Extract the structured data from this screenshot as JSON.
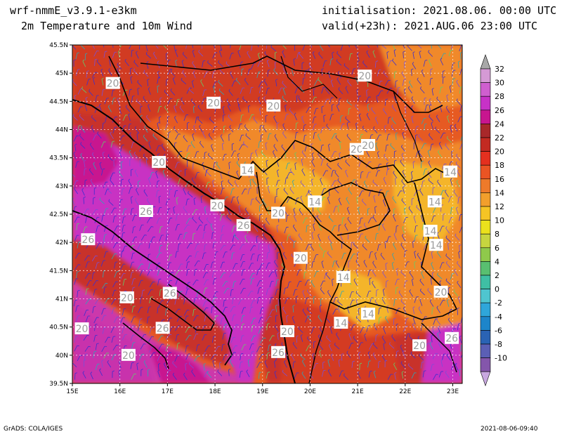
{
  "header": {
    "model": "wrf-nmmE_v3.9.1-e3km",
    "field": "2m Temperature and 10m Wind",
    "init": "initialisation: 2021.08.06. 00:00 UTC",
    "valid": "valid(+23h): 2021.AUG.06 23:00 UTC"
  },
  "footer": {
    "software": "GrADS: COLA/IGES",
    "timestamp": "2021-08-06-09:40"
  },
  "axes": {
    "lon_labels": [
      "15E",
      "16E",
      "17E",
      "18E",
      "19E",
      "20E",
      "21E",
      "22E",
      "23E"
    ],
    "lat_labels": [
      "45.5N",
      "45N",
      "44.5N",
      "44N",
      "43.5N",
      "43N",
      "42.5N",
      "42N",
      "41.5N",
      "41N",
      "40.5N",
      "40N",
      "39.5N"
    ]
  },
  "colorbar": {
    "levels": [
      "32",
      "30",
      "28",
      "26",
      "24",
      "22",
      "20",
      "18",
      "16",
      "14",
      "12",
      "10",
      "8",
      "6",
      "4",
      "2",
      "0",
      "-2",
      "-4",
      "-6",
      "-8",
      "-10"
    ],
    "colors": [
      "#d59ad5",
      "#cf5fcf",
      "#c732c7",
      "#c8158f",
      "#a8282a",
      "#c32a22",
      "#e4301f",
      "#ea5424",
      "#ee7a2a",
      "#f29f2c",
      "#f5c425",
      "#ebe11c",
      "#c7d53f",
      "#8fc94b",
      "#59bf70",
      "#3fbfa4",
      "#4fc5cf",
      "#2fa6da",
      "#1d85ca",
      "#2a63b4",
      "#5b5fb5",
      "#8456ab"
    ]
  },
  "contour_labels": [
    {
      "text": "20",
      "lon": 15.85,
      "lat": 44.82
    },
    {
      "text": "20",
      "lon": 17.97,
      "lat": 44.47
    },
    {
      "text": "20",
      "lon": 19.23,
      "lat": 44.42
    },
    {
      "text": "20",
      "lon": 21.15,
      "lat": 44.95
    },
    {
      "text": "20",
      "lon": 20.98,
      "lat": 43.65
    },
    {
      "text": "20",
      "lon": 21.22,
      "lat": 43.72
    },
    {
      "text": "20",
      "lon": 16.82,
      "lat": 43.42
    },
    {
      "text": "14",
      "lon": 18.68,
      "lat": 43.28
    },
    {
      "text": "14",
      "lon": 20.1,
      "lat": 42.72
    },
    {
      "text": "14",
      "lon": 22.95,
      "lat": 43.25
    },
    {
      "text": "14",
      "lon": 22.62,
      "lat": 42.72
    },
    {
      "text": "14",
      "lon": 22.53,
      "lat": 42.2
    },
    {
      "text": "14",
      "lon": 22.65,
      "lat": 41.95
    },
    {
      "text": "14",
      "lon": 20.7,
      "lat": 41.38
    },
    {
      "text": "14",
      "lon": 21.22,
      "lat": 40.73
    },
    {
      "text": "14",
      "lon": 20.65,
      "lat": 40.57
    },
    {
      "text": "20",
      "lon": 18.05,
      "lat": 42.65
    },
    {
      "text": "26",
      "lon": 16.55,
      "lat": 42.55
    },
    {
      "text": "26",
      "lon": 18.6,
      "lat": 42.3
    },
    {
      "text": "20",
      "lon": 19.33,
      "lat": 42.52
    },
    {
      "text": "26",
      "lon": 15.33,
      "lat": 42.05
    },
    {
      "text": "20",
      "lon": 19.8,
      "lat": 41.72
    },
    {
      "text": "26",
      "lon": 17.05,
      "lat": 41.1
    },
    {
      "text": "20",
      "lon": 16.15,
      "lat": 41.02
    },
    {
      "text": "20",
      "lon": 22.75,
      "lat": 41.12
    },
    {
      "text": "26",
      "lon": 16.9,
      "lat": 40.48
    },
    {
      "text": "20",
      "lon": 15.2,
      "lat": 40.47
    },
    {
      "text": "20",
      "lon": 19.52,
      "lat": 40.42
    },
    {
      "text": "26",
      "lon": 19.33,
      "lat": 40.05
    },
    {
      "text": "20",
      "lon": 16.18,
      "lat": 40.0
    },
    {
      "text": "20",
      "lon": 22.3,
      "lat": 40.17
    },
    {
      "text": "26",
      "lon": 22.98,
      "lat": 40.3
    }
  ]
}
